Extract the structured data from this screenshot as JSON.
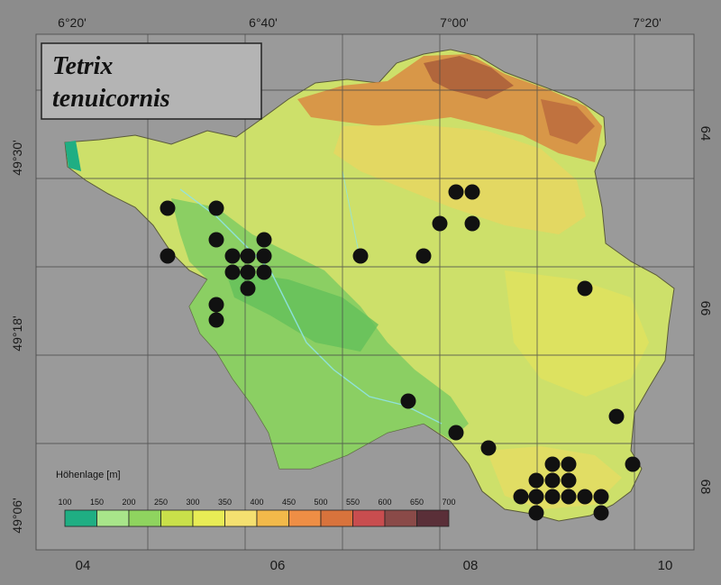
{
  "map": {
    "species_line1": "Tetrix",
    "species_line2": "tenuicornis",
    "longitude_labels_top": [
      "6°20'",
      "6°40'",
      "7°00'",
      "7°20'"
    ],
    "latitude_labels_left": [
      "49°30'",
      "49°18'",
      "49°06'"
    ],
    "grid_labels_bottom": [
      "04",
      "06",
      "08",
      "10"
    ],
    "grid_labels_right": [
      "64",
      "66",
      "68"
    ],
    "legend": {
      "title": "Höhenlage [m]",
      "ticks": [
        "100",
        "150",
        "200",
        "250",
        "300",
        "350",
        "400",
        "450",
        "500",
        "550",
        "600",
        "650",
        "700"
      ],
      "colors": [
        "#1fae83",
        "#a8e58a",
        "#8fd45f",
        "#c9e04a",
        "#e8ec55",
        "#f4e070",
        "#f2b94a",
        "#ee8e45",
        "#d8733c",
        "#c84d4f",
        "#8a4a48",
        "#5a2f38"
      ]
    },
    "colors": {
      "background": "#8c8c8c",
      "land_base": "#cde06a",
      "lowland": "#7fcb62",
      "upland": "#d98a42",
      "dot": "#111111"
    },
    "occurrence_count": 38
  }
}
